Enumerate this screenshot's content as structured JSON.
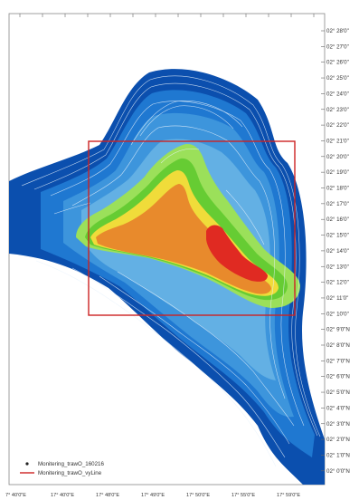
{
  "map": {
    "colors": {
      "deep": "#0b4fae",
      "mid": "#1f78d1",
      "shallow": "#3d95dc",
      "shelf": "#63b0e4",
      "green_light": "#9be05a",
      "green": "#66cc33",
      "yellow": "#f0dc3a",
      "orange": "#e88a2c",
      "red": "#e02a22",
      "box": "#cc2222",
      "contour": "#e8f2fb"
    },
    "lat_labels": [
      "02° 28'0\"",
      "02° 27'0\"",
      "02° 26'0\"",
      "02° 25'0\"",
      "02° 24'0\"",
      "02° 23'0\"",
      "02° 22'0\"",
      "02° 21'0\"",
      "02° 20'0\"",
      "02° 19'0\"",
      "02° 18'0\"",
      "02° 17'0\"",
      "02° 16'0\"",
      "02° 15'0\"",
      "02° 14'0\"",
      "02° 13'0\"",
      "02° 12'0\"",
      "02° 11'0\"",
      "02° 10'0\"",
      "02° 9'0\"N",
      "02° 8'0\"N",
      "02° 7'0\"N",
      "02° 6'0\"N",
      "02° 5'0\"N",
      "02° 4'0\"N",
      "02° 3'0\"N",
      "02° 2'0\"N",
      "02° 1'0\"N",
      "02° 0'0\"N"
    ],
    "lon_labels": [
      "7° 40'0\"E",
      "17° 40'0\"E",
      "17° 48'0\"E",
      "17° 49'0\"E",
      "17° 50'0\"E",
      "17° 55'0\"E",
      "17° 59'0\"E"
    ],
    "legend": {
      "items": [
        {
          "symbol": "point",
          "label": "Monitering_trawO_160216"
        },
        {
          "symbol": "line",
          "label": "Monitering_trawO_vyLine"
        }
      ]
    }
  }
}
